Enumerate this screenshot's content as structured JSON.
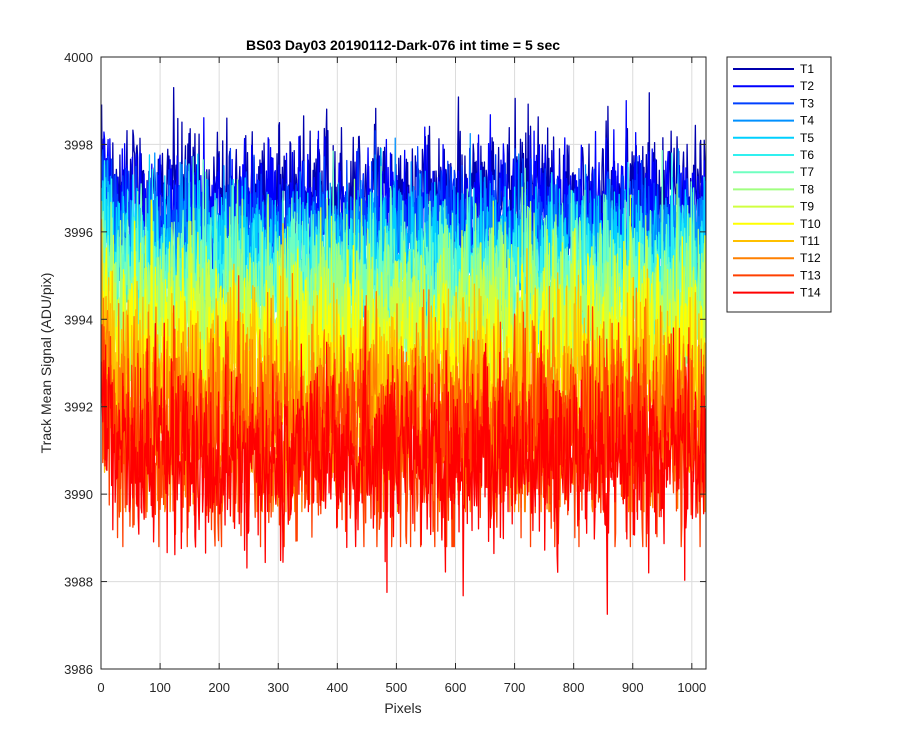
{
  "chart_data": {
    "type": "line",
    "title": "BS03 Day03 20190112-Dark-076 int time = 5 sec",
    "xlabel": "Pixels",
    "ylabel": "Track Mean Signal (ADU/pix)",
    "xlim": [
      0,
      1024
    ],
    "ylim": [
      3986,
      4000
    ],
    "x_ticks": [
      0,
      100,
      200,
      300,
      400,
      500,
      600,
      700,
      800,
      900,
      1000
    ],
    "y_ticks": [
      3986,
      3988,
      3990,
      3992,
      3994,
      3996,
      3998,
      4000
    ],
    "grid": true,
    "legend_position": "outside top-right",
    "x_points": 1024,
    "series": [
      {
        "name": "T1",
        "color": "#0000ad",
        "mean": 3996.9,
        "min": 3995.4,
        "max": 3999.3
      },
      {
        "name": "T2",
        "color": "#0000ff",
        "mean": 3996.5,
        "min": 3995.0,
        "max": 3999.0
      },
      {
        "name": "T3",
        "color": "#0040ff",
        "mean": 3996.1,
        "min": 3994.6,
        "max": 3998.6
      },
      {
        "name": "T4",
        "color": "#0090ff",
        "mean": 3995.7,
        "min": 3994.2,
        "max": 3998.3
      },
      {
        "name": "T5",
        "color": "#00d0ff",
        "mean": 3995.3,
        "min": 3993.8,
        "max": 3998.1
      },
      {
        "name": "T6",
        "color": "#30f0f0",
        "mean": 3994.9,
        "min": 3993.4,
        "max": 3997.8
      },
      {
        "name": "T7",
        "color": "#70ffc0",
        "mean": 3994.5,
        "min": 3993.0,
        "max": 3998.4
      },
      {
        "name": "T8",
        "color": "#a0ff80",
        "mean": 3994.1,
        "min": 3992.6,
        "max": 3997.5
      },
      {
        "name": "T9",
        "color": "#d0ff40",
        "mean": 3993.6,
        "min": 3992.0,
        "max": 3997.2
      },
      {
        "name": "T10",
        "color": "#ffff00",
        "mean": 3993.0,
        "min": 3991.3,
        "max": 3996.8
      },
      {
        "name": "T11",
        "color": "#ffc000",
        "mean": 3992.3,
        "min": 3990.5,
        "max": 3996.3
      },
      {
        "name": "T12",
        "color": "#ff8000",
        "mean": 3991.6,
        "min": 3989.6,
        "max": 3995.8
      },
      {
        "name": "T13",
        "color": "#ff4000",
        "mean": 3991.2,
        "min": 3988.8,
        "max": 3995.2
      },
      {
        "name": "T14",
        "color": "#ff0000",
        "mean": 3990.9,
        "min": 3987.2,
        "max": 3994.3
      }
    ]
  }
}
